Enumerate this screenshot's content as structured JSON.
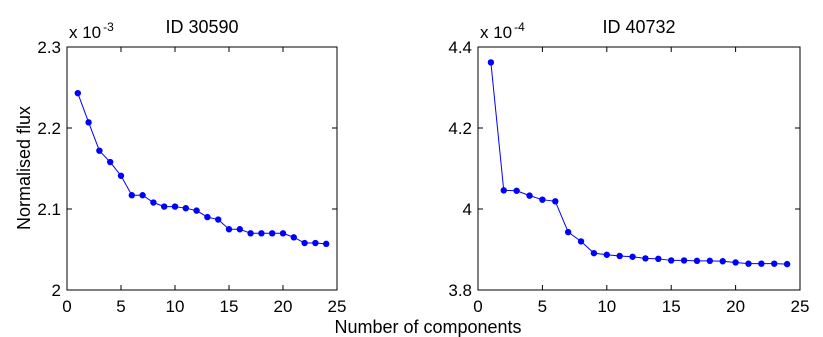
{
  "figure": {
    "xlabel": "Number of components",
    "ylabel": "Normalised flux"
  },
  "line_color": "#0000ff",
  "chart_data": [
    {
      "type": "line",
      "title": "ID 30590",
      "multiplier": "x 10",
      "multiplier_exp": "-3",
      "xlim": [
        0,
        25
      ],
      "ylim": [
        2.0,
        2.3
      ],
      "xticks": [
        0,
        5,
        10,
        15,
        20,
        25
      ],
      "xtick_labels": [
        "0",
        "5",
        "10",
        "15",
        "20",
        "25"
      ],
      "yticks": [
        2.0,
        2.1,
        2.2,
        2.3
      ],
      "ytick_labels": [
        "2",
        "2.1",
        "2.2",
        "2.3"
      ],
      "series": [
        {
          "x": [
            1,
            2,
            3,
            4,
            5,
            6,
            7,
            8,
            9,
            10,
            11,
            12,
            13,
            14,
            15,
            16,
            17,
            18,
            19,
            20,
            21,
            22,
            23,
            24
          ],
          "y": [
            2.243,
            2.207,
            2.172,
            2.158,
            2.141,
            2.117,
            2.117,
            2.108,
            2.103,
            2.103,
            2.101,
            2.098,
            2.09,
            2.087,
            2.075,
            2.075,
            2.07,
            2.07,
            2.07,
            2.07,
            2.065,
            2.058,
            2.058,
            2.057
          ]
        }
      ]
    },
    {
      "type": "line",
      "title": "ID 40732",
      "multiplier": "x 10",
      "multiplier_exp": "-4",
      "xlim": [
        0,
        25
      ],
      "ylim": [
        3.8,
        4.4
      ],
      "xticks": [
        0,
        5,
        10,
        15,
        20,
        25
      ],
      "xtick_labels": [
        "0",
        "5",
        "10",
        "15",
        "20",
        "25"
      ],
      "yticks": [
        3.8,
        4.0,
        4.2,
        4.4
      ],
      "ytick_labels": [
        "3.8",
        "4",
        "4.2",
        "4.4"
      ],
      "series": [
        {
          "x": [
            1,
            2,
            3,
            4,
            5,
            6,
            7,
            8,
            9,
            10,
            11,
            12,
            13,
            14,
            15,
            16,
            17,
            18,
            19,
            20,
            21,
            22,
            23,
            24
          ],
          "y": [
            4.362,
            4.046,
            4.045,
            4.033,
            4.023,
            4.019,
            3.943,
            3.92,
            3.891,
            3.887,
            3.884,
            3.882,
            3.878,
            3.877,
            3.873,
            3.873,
            3.872,
            3.872,
            3.871,
            3.868,
            3.865,
            3.865,
            3.865,
            3.864
          ]
        }
      ]
    }
  ]
}
